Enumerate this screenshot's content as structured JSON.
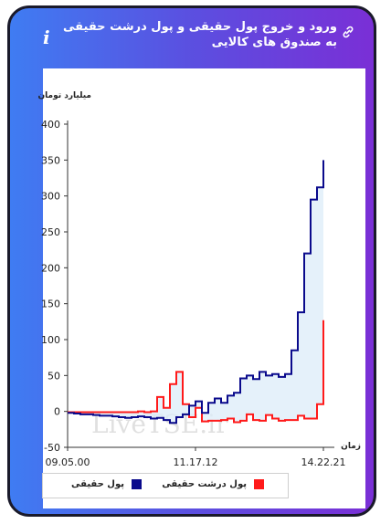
{
  "header": {
    "title": "ورود و خروج پول حقیقی و پول درشت حقیقی به صندوق های کالایی",
    "info_symbol": "i"
  },
  "chart_data": {
    "type": "line",
    "xlabel": "زمان",
    "ylabel": "میلیارد تومان",
    "ylim": [
      -50,
      400
    ],
    "yticks": [
      400,
      350,
      300,
      250,
      200,
      150,
      100,
      50,
      0,
      -50
    ],
    "x_tick_labels": [
      "09.05.00",
      "11.17.12",
      "14.22.21"
    ],
    "watermark": "LiveTSE.ir",
    "grid": false,
    "legend_position": "bottom",
    "series": [
      {
        "name": "پول حقیقی",
        "color": "#0a0a8c",
        "values": [
          -2,
          -3,
          -4,
          -4,
          -5,
          -6,
          -6,
          -7,
          -8,
          -9,
          -8,
          -7,
          -8,
          -10,
          -9,
          -12,
          -16,
          -8,
          -4,
          8,
          14,
          -2,
          12,
          18,
          12,
          22,
          26,
          46,
          50,
          45,
          55,
          50,
          52,
          48,
          52,
          85,
          138,
          220,
          295,
          312,
          350
        ]
      },
      {
        "name": "پول درشت حقیقی",
        "color": "#ff1a1a",
        "values": [
          -1,
          -1,
          -1,
          -1,
          -1,
          -1,
          -1,
          -1,
          -1,
          -1,
          -1,
          0,
          -1,
          0,
          20,
          5,
          38,
          55,
          10,
          -8,
          5,
          -14,
          -13,
          -13,
          -12,
          -10,
          -15,
          -13,
          -4,
          -12,
          -13,
          -5,
          -10,
          -13,
          -12,
          -12,
          -6,
          -10,
          -10,
          10,
          127
        ]
      }
    ]
  },
  "legend": {
    "items": [
      {
        "label": "پول حقیقی",
        "color": "#0a0a8c"
      },
      {
        "label": "پول درشت حقیقی",
        "color": "#ff1a1a"
      }
    ]
  }
}
